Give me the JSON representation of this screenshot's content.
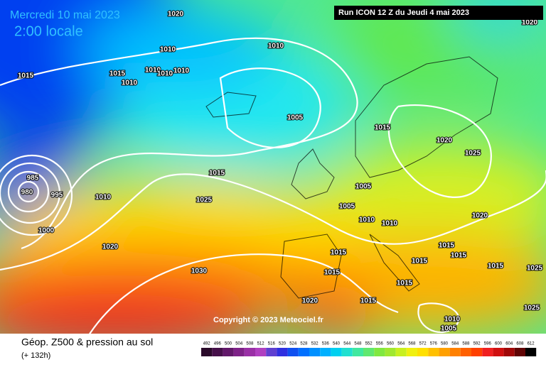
{
  "header": {
    "date": "Mercredi 10 mai 2023",
    "time": "2:00 locale",
    "run": "Run ICON 12 Z du Jeudi 4 mai 2023"
  },
  "copyright": "Copyright © 2023 Meteociel.fr",
  "footer": {
    "title": "Géop. Z500 & pression au sol",
    "lead": "(+ 132h)"
  },
  "isobar_labels": [
    "1020",
    "1020",
    "1010",
    "1010",
    "1015",
    "1015",
    "1010",
    "1010",
    "1010",
    "1010",
    "1005",
    "1015",
    "1020",
    "1025",
    "1015",
    "985",
    "980",
    "995",
    "1010",
    "1025",
    "1005",
    "1005",
    "1000",
    "1010",
    "1010",
    "1020",
    "1020",
    "1015",
    "1015",
    "1015",
    "1015",
    "1015",
    "1025",
    "1030",
    "1015",
    "1015",
    "1020",
    "1015",
    "1025",
    "1010",
    "1005"
  ],
  "legend": {
    "scale": [
      492,
      496,
      500,
      504,
      508,
      512,
      516,
      520,
      524,
      528,
      532,
      536,
      540,
      544,
      548,
      552,
      556,
      560,
      564,
      568,
      572,
      576,
      580,
      584,
      588,
      592,
      596,
      600,
      604,
      608,
      612
    ],
    "colors": [
      "#2a0a2a",
      "#46104a",
      "#62186a",
      "#7e2288",
      "#9a30a6",
      "#b040c0",
      "#6040d0",
      "#3030e0",
      "#1050f0",
      "#0070ff",
      "#0090ff",
      "#00b0ff",
      "#00d0f0",
      "#20e0d0",
      "#40e8a0",
      "#60e870",
      "#80e840",
      "#a0e830",
      "#c8f020",
      "#f0f010",
      "#ffe000",
      "#ffc000",
      "#ffa000",
      "#ff8000",
      "#ff6000",
      "#ff4000",
      "#f02020",
      "#d01010",
      "#a00808",
      "#600404",
      "#000000"
    ]
  }
}
